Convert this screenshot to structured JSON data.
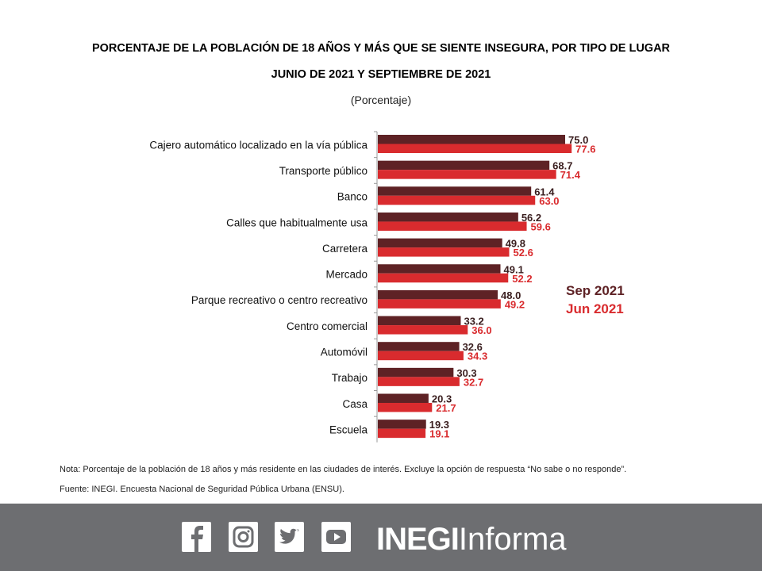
{
  "chart_data": {
    "type": "bar",
    "orientation": "horizontal",
    "title": "PORCENTAJE DE LA POBLACIÓN DE 18 AÑOS Y MÁS QUE SE SIENTE INSEGURA, POR TIPO DE LUGAR",
    "subtitle": "JUNIO DE 2021 Y SEPTIEMBRE DE 2021",
    "unit_label": "(Porcentaje)",
    "categories": [
      "Cajero automático localizado en la vía pública",
      "Transporte público",
      "Banco",
      "Calles que habitualmente usa",
      "Carretera",
      "Mercado",
      "Parque recreativo o centro recreativo",
      "Centro comercial",
      "Automóvil",
      "Trabajo",
      "Casa",
      "Escuela"
    ],
    "series": [
      {
        "name": "Sep 2021",
        "color": "#5e2225",
        "values": [
          75.0,
          68.7,
          61.4,
          56.2,
          49.8,
          49.1,
          48.0,
          33.2,
          32.6,
          30.3,
          20.3,
          19.3
        ]
      },
      {
        "name": "Jun 2021",
        "color": "#d92b2e",
        "values": [
          77.6,
          71.4,
          63.0,
          59.6,
          52.6,
          52.2,
          49.2,
          36.0,
          34.3,
          32.7,
          21.7,
          19.1
        ]
      }
    ],
    "xlim": [
      0,
      100
    ],
    "grid": false,
    "legend_position": "right"
  },
  "note": "Nota: Porcentaje de la población de 18 años y más residente en las ciudades de interés. Excluye la opción de respuesta “No sabe o no responde”.",
  "source": "Fuente: INEGI. Encuesta Nacional de Seguridad Pública Urbana (ENSU).",
  "footer": {
    "social": [
      "facebook-icon",
      "instagram-icon",
      "twitter-icon",
      "youtube-icon"
    ],
    "brand_bold": "INEGI",
    "brand_light": "Informa"
  }
}
